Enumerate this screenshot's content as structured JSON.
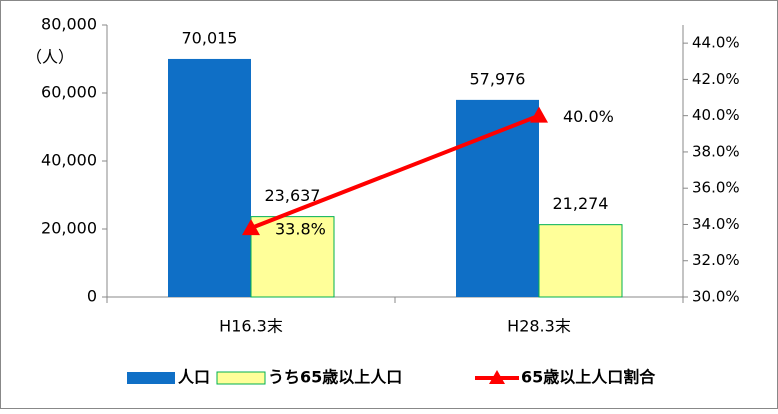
{
  "chart_data": {
    "type": "bar",
    "annotations": [
      "（人）"
    ],
    "categories": [
      "H16.3末",
      "H28.3末"
    ],
    "series": [
      {
        "name": "人口",
        "color": "#0f6fc6",
        "values": [
          70015,
          57976
        ],
        "value_labels": [
          "70,015",
          "57,976"
        ]
      },
      {
        "name": "うち65歳以上人口",
        "color": "#ffff99",
        "edge_color": "#00b050",
        "values": [
          23637,
          21274
        ],
        "value_labels": [
          "23,637",
          "21,274"
        ]
      },
      {
        "name": "65歳以上人口割合",
        "type": "line",
        "axis": "y2",
        "color": "#ff0000",
        "values": [
          33.8,
          40.0
        ],
        "value_labels": [
          "33.8%",
          "40.0%"
        ]
      }
    ],
    "ylim": [
      0,
      80000
    ],
    "yticks": [
      0,
      {
        "value": 20000,
        "label": "20,000"
      },
      {
        "value": 40000,
        "label": "40,000"
      },
      {
        "value": 60000,
        "label": "60,000"
      },
      {
        "value": 80000,
        "label": "80,000"
      }
    ],
    "y2lim": [
      30,
      45
    ],
    "y2ticks": [
      {
        "value": 30,
        "label": "30.0%"
      },
      {
        "value": 32,
        "label": "32.0%"
      },
      {
        "value": 34,
        "label": "34.0%"
      },
      {
        "value": 36,
        "label": "36.0%"
      },
      {
        "value": 38,
        "label": "38.0%"
      },
      {
        "value": 40,
        "label": "40.0%"
      },
      {
        "value": 42,
        "label": "42.0%"
      },
      {
        "value": 44,
        "label": "44.0%"
      }
    ],
    "legend": "bottom"
  }
}
